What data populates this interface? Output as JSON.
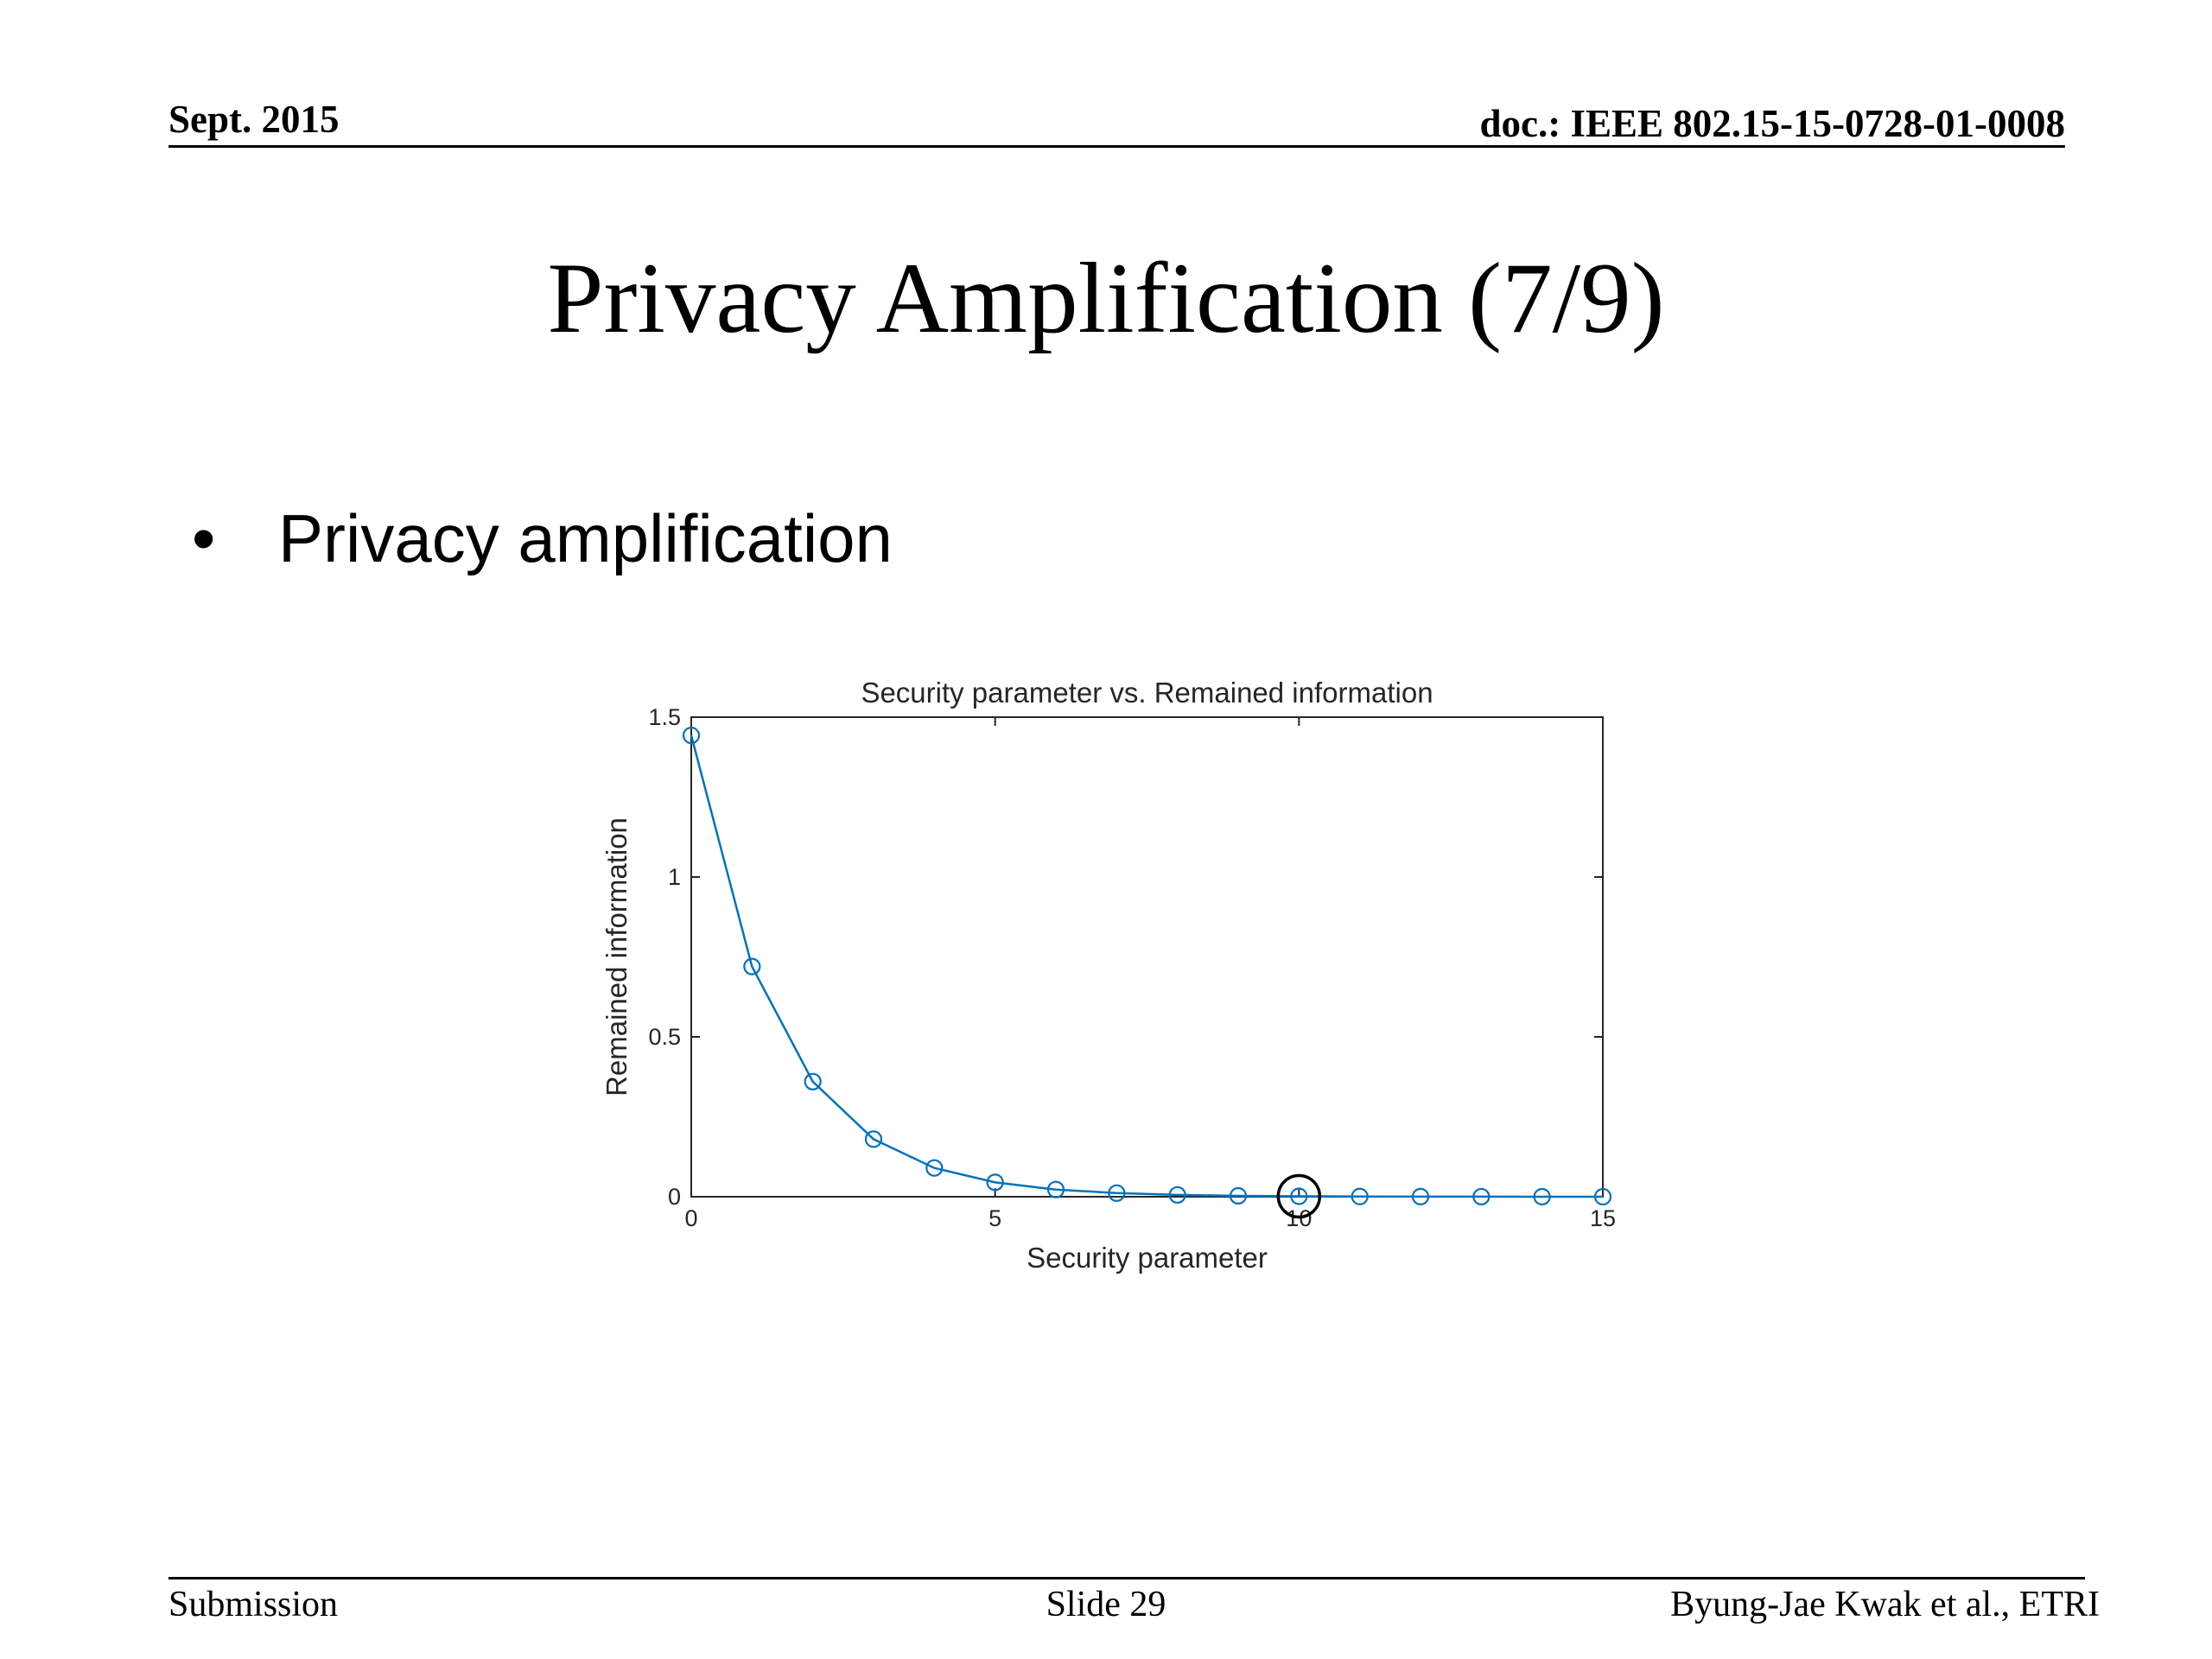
{
  "header": {
    "date": "Sept. 2015",
    "doc_id": "doc.: IEEE 802.15-15-0728-01-0008"
  },
  "slide": {
    "title": "Privacy Amplification (7/9)",
    "bullets": [
      "Privacy amplification"
    ]
  },
  "footer": {
    "left": "Submission",
    "center": "Slide 29",
    "right": "Byung-Jae Kwak et al., ETRI"
  },
  "colors": {
    "series": "#0072BD",
    "axes": "#262626",
    "highlight": "#000000"
  },
  "chart_data": {
    "type": "line",
    "title": "Security parameter vs. Remained information",
    "xlabel": "Security parameter",
    "ylabel": "Remained information",
    "xlim": [
      0,
      15
    ],
    "ylim": [
      0,
      1.5
    ],
    "xticks": [
      0,
      5,
      10,
      15
    ],
    "yticks": [
      0,
      0.5,
      1,
      1.5
    ],
    "xtick_labels": [
      "0",
      "5",
      "10",
      "15"
    ],
    "ytick_labels": [
      "0",
      "0.5",
      "1",
      "1.5"
    ],
    "grid": false,
    "marker": "circle",
    "highlighted_point_x": 10,
    "series": [
      {
        "x": [
          0,
          1,
          2,
          3,
          4,
          5,
          6,
          7,
          8,
          9,
          10,
          11,
          12,
          13,
          14,
          15
        ],
        "values": [
          1.443,
          0.72,
          0.36,
          0.18,
          0.09,
          0.045,
          0.0225,
          0.0113,
          0.0056,
          0.0028,
          0.0014,
          0.0007,
          0.00035,
          0.00018,
          9e-05,
          4e-05
        ]
      }
    ]
  }
}
